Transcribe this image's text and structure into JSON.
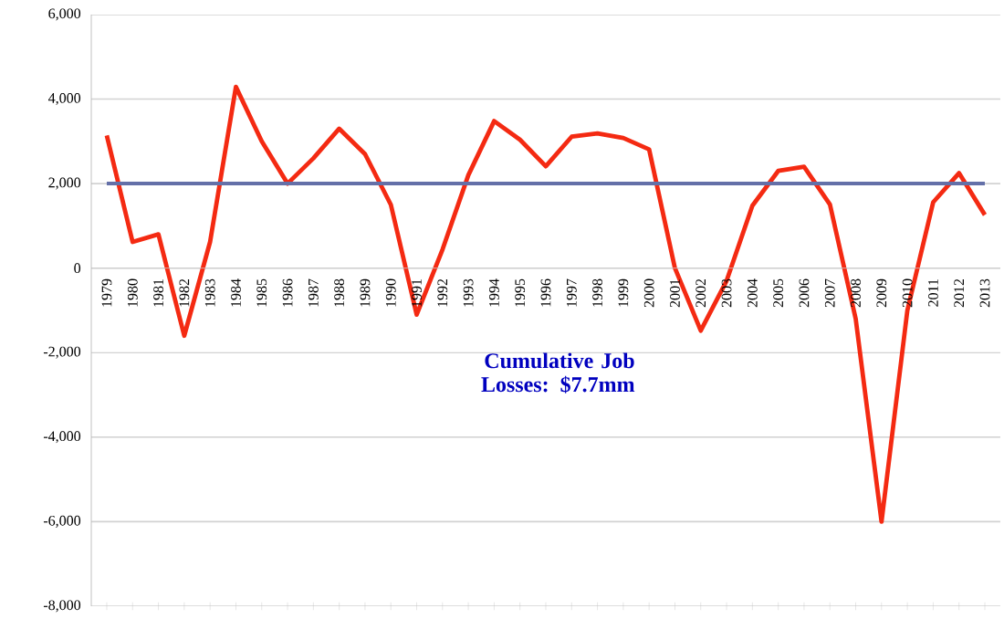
{
  "chart_data": {
    "type": "line",
    "categories": [
      "1979",
      "1980",
      "1981",
      "1982",
      "1983",
      "1984",
      "1985",
      "1986",
      "1987",
      "1988",
      "1989",
      "1990",
      "1991",
      "1992",
      "1993",
      "1994",
      "1995",
      "1996",
      "1997",
      "1998",
      "1999",
      "2000",
      "2001",
      "2002",
      "2003",
      "2004",
      "2005",
      "2006",
      "2007",
      "2008",
      "2009",
      "2010",
      "2011",
      "2012",
      "2013"
    ],
    "series": [
      {
        "color": "#f42a12",
        "values": [
          3140,
          620,
          800,
          -1600,
          620,
          4290,
          3000,
          2000,
          2600,
          3300,
          2700,
          1500,
          -1100,
          440,
          2200,
          3480,
          3040,
          2410,
          3110,
          3190,
          3080,
          2810,
          0,
          -1480,
          -300,
          1480,
          2300,
          2400,
          1510,
          -1200,
          -6000,
          -1000,
          1560,
          2250,
          1260
        ]
      },
      {
        "color": "#6470a8",
        "values": [
          2000,
          2000,
          2000,
          2000,
          2000,
          2000,
          2000,
          2000,
          2000,
          2000,
          2000,
          2000,
          2000,
          2000,
          2000,
          2000,
          2000,
          2000,
          2000,
          2000,
          2000,
          2000,
          2000,
          2000,
          2000,
          2000,
          2000,
          2000,
          2000,
          2000,
          2000,
          2000,
          2000,
          2000,
          2000
        ]
      }
    ],
    "ylim": [
      -8000,
      6000
    ],
    "yticks": [
      {
        "value": -8000,
        "label": "-8,000"
      },
      {
        "value": -6000,
        "label": "-6,000"
      },
      {
        "value": -4000,
        "label": "-4,000"
      },
      {
        "value": -2000,
        "label": "-2,000"
      },
      {
        "value": 0,
        "label": "0"
      },
      {
        "value": 2000,
        "label": "2,000"
      },
      {
        "value": 4000,
        "label": "4,000"
      },
      {
        "value": 6000,
        "label": "6,000"
      }
    ],
    "grid": "y",
    "marker": "none",
    "line_style": "solid",
    "annotations": [
      "Cumulative Job Losses: $7.7mm"
    ]
  }
}
